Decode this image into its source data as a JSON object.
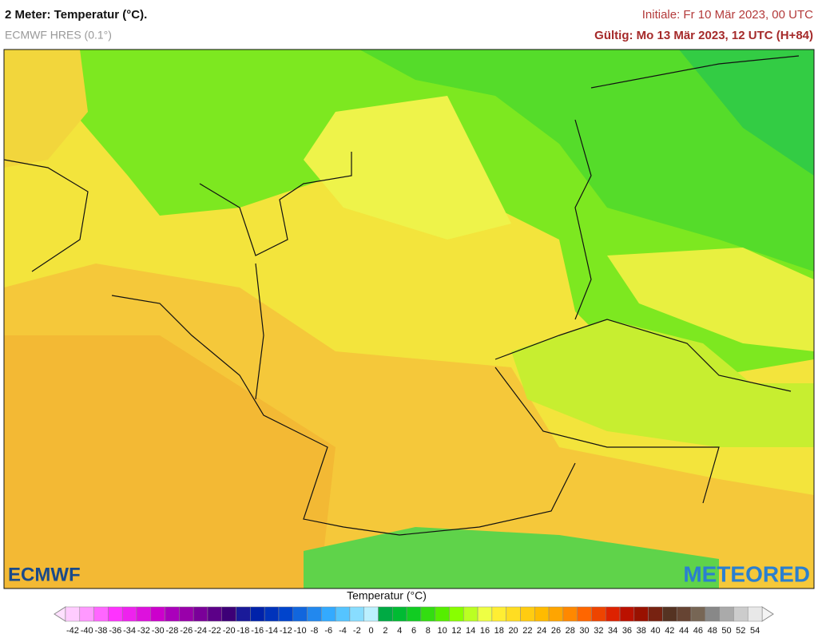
{
  "header": {
    "title": "2 Meter: Temperatur (°C).",
    "model": "ECMWF HRES (0.1°)",
    "initial": "Initiale: Fr 10 Mär 2023, 00 UTC",
    "valid": "Gültig: Mo 13 Mär 2023, 12 UTC (H+84)"
  },
  "logos": {
    "left": "ECMWF",
    "right": "METEORED"
  },
  "legend": {
    "title": "Temperatur (°C)",
    "ticks": [
      -42,
      -40,
      -38,
      -36,
      -34,
      -32,
      -30,
      -28,
      -26,
      -24,
      -22,
      -20,
      -18,
      -16,
      -14,
      -12,
      -10,
      -8,
      -6,
      -4,
      -2,
      0,
      2,
      4,
      6,
      8,
      10,
      12,
      14,
      16,
      18,
      20,
      22,
      24,
      26,
      28,
      30,
      32,
      34,
      36,
      38,
      40,
      42,
      44,
      46,
      48,
      50,
      52,
      54
    ],
    "colors": [
      "#ffccff",
      "#ff99ff",
      "#ff66ff",
      "#ff33ff",
      "#ee22ee",
      "#dd11dd",
      "#cc00cc",
      "#aa00bb",
      "#9900aa",
      "#7a0099",
      "#5c0088",
      "#3d0077",
      "#1a1a99",
      "#0022aa",
      "#0033bb",
      "#0044cc",
      "#1166dd",
      "#2288ee",
      "#33aaff",
      "#55c4ff",
      "#88ddff",
      "#bbf0ff",
      "#00aa44",
      "#00bb33",
      "#11cc22",
      "#33dd11",
      "#55ee00",
      "#88ff00",
      "#bbff22",
      "#eeff44",
      "#ffee33",
      "#ffdd22",
      "#ffcc11",
      "#ffbb00",
      "#ffa500",
      "#ff8800",
      "#ff6600",
      "#ee4400",
      "#dd2200",
      "#bb1100",
      "#991100",
      "#772211",
      "#553322",
      "#664433",
      "#776655",
      "#888888",
      "#aaaaaa",
      "#cccccc",
      "#e8e8e8"
    ]
  }
}
